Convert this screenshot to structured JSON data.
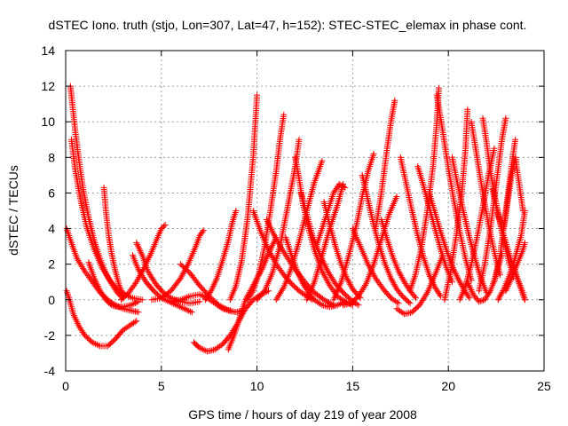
{
  "chart_data": {
    "type": "scatter",
    "title": "dSTEC Iono. truth (stjo, Lon=307, Lat=47, h=152): STEC-STEC_elemax in phase cont.",
    "xlabel": "GPS time / hours of day 219 of year 2008",
    "ylabel": "dSTEC  / TECUs",
    "xlim": [
      0,
      25
    ],
    "ylim": [
      -4,
      14
    ],
    "xticks": [
      0,
      5,
      10,
      15,
      20,
      25
    ],
    "yticks": [
      -4,
      -2,
      0,
      2,
      4,
      6,
      8,
      10,
      12,
      14
    ],
    "grid": true,
    "marker": "+",
    "color": "#ff0000",
    "series": [
      {
        "x": [
          0.05,
          0.2,
          0.4,
          0.7,
          1.0,
          1.4,
          1.8,
          2.2,
          2.6,
          3.0,
          3.4,
          3.7
        ],
        "values": [
          0.5,
          0.0,
          -0.8,
          -1.5,
          -2.0,
          -2.4,
          -2.6,
          -2.6,
          -2.2,
          -1.7,
          -1.4,
          -1.2
        ]
      },
      {
        "x": [
          0.05,
          0.3,
          0.6,
          1.0,
          1.4,
          1.8,
          2.2,
          2.6,
          3.0,
          3.4,
          3.8
        ],
        "values": [
          4.0,
          3.2,
          2.3,
          1.6,
          1.0,
          0.4,
          0.0,
          -0.3,
          -0.5,
          -0.6,
          -0.7
        ]
      },
      {
        "x": [
          0.25,
          0.35,
          0.5,
          0.7,
          0.9,
          1.2,
          1.5,
          1.8,
          2.1,
          2.4,
          2.7,
          3.0
        ],
        "values": [
          12.0,
          11.0,
          9.5,
          7.8,
          6.3,
          4.6,
          3.3,
          2.3,
          1.5,
          0.9,
          0.4,
          0.1
        ]
      },
      {
        "x": [
          0.3,
          0.5,
          0.8,
          1.1,
          1.5,
          1.9,
          2.3,
          2.7,
          3.1,
          3.5,
          4.0
        ],
        "values": [
          9.0,
          7.3,
          5.5,
          4.1,
          2.8,
          1.8,
          1.1,
          0.6,
          0.3,
          0.1,
          0.0
        ]
      },
      {
        "x": [
          1.2,
          1.5,
          1.8,
          2.1,
          2.4,
          2.7,
          3.0,
          3.4,
          3.8
        ],
        "values": [
          2.1,
          1.2,
          0.5,
          0.0,
          -0.3,
          -0.4,
          -0.4,
          -0.3,
          -0.1
        ]
      },
      {
        "x": [
          2.0,
          2.1,
          2.25,
          2.4,
          2.6,
          2.8,
          3.0
        ],
        "values": [
          6.3,
          5.0,
          3.6,
          2.6,
          1.6,
          0.8,
          0.3
        ]
      },
      {
        "x": [
          3.5,
          3.8,
          4.2,
          4.6,
          5.0,
          5.4,
          5.8,
          6.2,
          6.6
        ],
        "values": [
          2.5,
          1.7,
          1.0,
          0.5,
          0.1,
          -0.1,
          -0.3,
          -0.5,
          -0.7
        ]
      },
      {
        "x": [
          3.7,
          4.0,
          4.3,
          4.7,
          5.1,
          5.5,
          6.0,
          6.5,
          7.0
        ],
        "values": [
          3.2,
          2.5,
          1.6,
          0.9,
          0.4,
          0.1,
          -0.1,
          -0.2,
          -0.1
        ]
      },
      {
        "x": [
          2.9,
          3.3,
          3.7,
          4.1,
          4.5,
          4.8,
          5.0,
          5.2
        ],
        "values": [
          0.0,
          0.4,
          1.0,
          1.8,
          2.7,
          3.5,
          4.0,
          4.2
        ]
      },
      {
        "x": [
          4.5,
          5.0,
          5.5,
          6.0,
          6.4,
          6.8,
          7.0,
          7.2
        ],
        "values": [
          0.0,
          0.1,
          0.5,
          1.2,
          2.0,
          3.0,
          3.6,
          3.9
        ]
      },
      {
        "x": [
          5.5,
          6.0,
          6.5,
          7.0,
          7.4,
          7.8,
          8.2,
          8.6
        ],
        "values": [
          -0.1,
          0.0,
          0.2,
          0.3,
          0.1,
          -0.2,
          -0.5,
          -0.6
        ]
      },
      {
        "x": [
          6.0,
          6.5,
          7.0,
          7.5,
          8.0,
          8.5,
          8.9,
          9.3
        ],
        "values": [
          2.0,
          1.5,
          0.8,
          0.2,
          -0.3,
          -0.6,
          -0.7,
          -0.6
        ]
      },
      {
        "x": [
          6.7,
          7.0,
          7.4,
          7.8,
          8.2,
          8.6,
          9.0,
          9.4,
          9.8,
          10.2,
          10.6
        ],
        "values": [
          -2.4,
          -2.7,
          -2.9,
          -2.8,
          -2.5,
          -2.0,
          -1.3,
          -0.5,
          0.0,
          0.3,
          0.5
        ]
      },
      {
        "x": [
          8.5,
          8.8,
          9.1,
          9.4,
          9.7,
          10.0,
          10.3,
          10.6,
          11.0
        ],
        "values": [
          -2.8,
          -2.0,
          -1.0,
          0.0,
          0.6,
          1.2,
          1.8,
          2.6,
          3.5
        ]
      },
      {
        "x": [
          7.3,
          7.6,
          7.9,
          8.2,
          8.5,
          8.7,
          8.9
        ],
        "values": [
          0.0,
          0.5,
          1.2,
          2.2,
          3.3,
          4.3,
          5.0
        ]
      },
      {
        "x": [
          8.6,
          8.9,
          9.2,
          9.5,
          9.8,
          10.0
        ],
        "values": [
          0.0,
          0.8,
          2.2,
          4.5,
          8.0,
          11.5
        ]
      },
      {
        "x": [
          9.5,
          9.8,
          10.1,
          10.4,
          10.7,
          11.0,
          11.2,
          11.4
        ],
        "values": [
          0.0,
          0.5,
          1.5,
          3.0,
          5.0,
          7.2,
          9.0,
          10.4
        ]
      },
      {
        "x": [
          10.0,
          10.4,
          10.8,
          11.2,
          11.6,
          12.0,
          12.2
        ],
        "values": [
          0.0,
          0.5,
          1.5,
          3.0,
          5.2,
          7.5,
          9.0
        ]
      },
      {
        "x": [
          9.8,
          10.2,
          10.6,
          11.0,
          11.4,
          11.8,
          12.2,
          12.6,
          12.9
        ],
        "values": [
          5.0,
          3.8,
          2.8,
          2.0,
          1.4,
          0.9,
          0.5,
          0.2,
          0.0
        ]
      },
      {
        "x": [
          11.0,
          11.4,
          11.8,
          12.2,
          12.6,
          13.0,
          13.4
        ],
        "values": [
          0.0,
          0.7,
          1.8,
          3.3,
          5.0,
          6.6,
          7.8
        ]
      },
      {
        "x": [
          10.5,
          11.0,
          11.5,
          12.0,
          12.5,
          13.0,
          13.5,
          14.0
        ],
        "values": [
          4.5,
          3.4,
          2.5,
          1.7,
          1.0,
          0.4,
          0.0,
          -0.3
        ]
      },
      {
        "x": [
          11.5,
          11.8,
          12.1,
          12.4,
          12.7,
          13.0,
          13.4,
          13.8,
          14.2,
          14.6
        ],
        "values": [
          3.5,
          2.5,
          1.6,
          0.9,
          0.4,
          0.0,
          -0.3,
          -0.4,
          -0.3,
          -0.1
        ]
      },
      {
        "x": [
          12.0,
          12.2,
          12.4,
          12.7,
          13.0,
          13.4,
          13.8,
          14.2,
          14.6,
          15.0
        ],
        "values": [
          8.0,
          6.8,
          5.4,
          4.0,
          2.8,
          1.6,
          0.8,
          0.2,
          -0.1,
          -0.3
        ]
      },
      {
        "x": [
          12.3,
          12.6,
          12.9,
          13.3,
          13.7,
          14.1,
          14.5,
          14.9,
          15.3
        ],
        "values": [
          6.0,
          4.8,
          3.6,
          2.5,
          1.6,
          0.9,
          0.4,
          0.0,
          -0.3
        ]
      },
      {
        "x": [
          12.6,
          13.0,
          13.4,
          13.8,
          14.2,
          14.5
        ],
        "values": [
          0.0,
          1.0,
          2.5,
          4.0,
          5.3,
          6.5
        ]
      },
      {
        "x": [
          13.1,
          13.4,
          13.7,
          14.0,
          14.3,
          14.6
        ],
        "values": [
          3.0,
          4.0,
          5.0,
          6.0,
          6.5,
          6.3
        ]
      },
      {
        "x": [
          13.5,
          13.8,
          14.1,
          14.4,
          14.7,
          15.0,
          15.4
        ],
        "values": [
          5.5,
          4.2,
          3.0,
          2.0,
          1.2,
          0.6,
          0.1
        ]
      },
      {
        "x": [
          14.0,
          14.4,
          14.8,
          15.2,
          15.5,
          15.8,
          16.1
        ],
        "values": [
          0.0,
          1.0,
          2.5,
          4.2,
          5.8,
          7.2,
          8.2
        ]
      },
      {
        "x": [
          14.5,
          14.9,
          15.3,
          15.7,
          16.1,
          16.5,
          16.9,
          17.3
        ],
        "values": [
          -0.3,
          -0.2,
          0.2,
          0.9,
          2.0,
          3.4,
          4.8,
          5.8
        ]
      },
      {
        "x": [
          15.0,
          15.4,
          15.8,
          16.2,
          16.6,
          17.0,
          17.4
        ],
        "values": [
          4.0,
          3.0,
          2.0,
          1.2,
          0.6,
          0.1,
          -0.2
        ]
      },
      {
        "x": [
          15.5,
          15.8,
          16.1,
          16.4,
          16.7,
          17.0,
          17.3,
          17.6,
          18.0
        ],
        "values": [
          7.0,
          5.6,
          4.2,
          3.0,
          2.0,
          1.2,
          0.6,
          0.2,
          -0.2
        ]
      },
      {
        "x": [
          16.2,
          16.5,
          16.8,
          17.0,
          17.2
        ],
        "values": [
          4.0,
          6.0,
          8.5,
          10.0,
          11.2
        ]
      },
      {
        "x": [
          16.5,
          16.8,
          17.1,
          17.4,
          17.7,
          18.0,
          18.3
        ],
        "values": [
          4.5,
          3.4,
          2.4,
          1.6,
          1.0,
          0.5,
          0.1
        ]
      },
      {
        "x": [
          17.3,
          17.7,
          18.1,
          18.5,
          18.9,
          19.3,
          19.7
        ],
        "values": [
          -0.5,
          -0.8,
          -0.7,
          -0.3,
          0.4,
          1.4,
          2.5
        ]
      },
      {
        "x": [
          17.5,
          17.8,
          18.1,
          18.4,
          18.7,
          19.0,
          19.3,
          19.6
        ],
        "values": [
          8.0,
          6.5,
          5.0,
          3.6,
          2.4,
          1.4,
          0.7,
          0.2
        ]
      },
      {
        "x": [
          18.0,
          18.3,
          18.6,
          18.9,
          19.2,
          19.4,
          19.5
        ],
        "values": [
          0.5,
          1.5,
          3.0,
          5.0,
          7.5,
          10.0,
          11.9
        ]
      },
      {
        "x": [
          18.4,
          18.7,
          19.0,
          19.3,
          19.6,
          19.9,
          20.2
        ],
        "values": [
          7.5,
          6.4,
          5.2,
          4.0,
          2.8,
          1.8,
          1.0
        ]
      },
      {
        "x": [
          19.0,
          19.3,
          19.6,
          19.9,
          20.2,
          20.5,
          20.8,
          21.1
        ],
        "values": [
          6.0,
          4.9,
          3.8,
          2.8,
          1.9,
          1.2,
          0.6,
          0.1
        ]
      },
      {
        "x": [
          19.4,
          19.7,
          20.0,
          20.3,
          20.6,
          20.9,
          21.2
        ],
        "values": [
          11.5,
          9.5,
          7.4,
          5.5,
          3.8,
          2.3,
          1.1
        ]
      },
      {
        "x": [
          19.8,
          20.1,
          20.4,
          20.7,
          20.9,
          21.0
        ],
        "values": [
          0.0,
          1.5,
          3.5,
          6.0,
          8.5,
          10.7
        ]
      },
      {
        "x": [
          20.2,
          20.5,
          20.8,
          21.1,
          21.4,
          21.7,
          22.0
        ],
        "values": [
          8.0,
          6.4,
          4.9,
          3.5,
          2.3,
          1.2,
          0.4
        ]
      },
      {
        "x": [
          20.6,
          20.9,
          21.2,
          21.5,
          21.8,
          22.1,
          22.4
        ],
        "values": [
          0.0,
          0.8,
          2.0,
          3.5,
          5.2,
          7.0,
          8.5
        ]
      },
      {
        "x": [
          21.2,
          21.5,
          21.8,
          22.1,
          22.4,
          22.7
        ],
        "values": [
          10.0,
          8.0,
          6.0,
          4.2,
          2.7,
          1.4
        ]
      },
      {
        "x": [
          21.0,
          21.3,
          21.6,
          21.9,
          22.2,
          22.5,
          22.8
        ],
        "values": [
          1.0,
          0.3,
          -0.1,
          0.0,
          0.5,
          1.4,
          2.6
        ]
      },
      {
        "x": [
          21.8,
          22.0,
          22.2,
          22.5,
          22.8,
          23.1,
          23.4
        ],
        "values": [
          10.2,
          8.8,
          7.2,
          5.4,
          3.8,
          2.4,
          1.3
        ]
      },
      {
        "x": [
          21.6,
          21.9,
          22.2,
          22.5,
          22.8,
          23.0
        ],
        "values": [
          0.5,
          2.0,
          4.0,
          6.5,
          9.0,
          10.2
        ]
      },
      {
        "x": [
          22.3,
          22.6,
          22.9,
          23.2,
          23.5,
          23.8,
          24.0
        ],
        "values": [
          6.2,
          4.8,
          3.6,
          2.5,
          1.5,
          0.7,
          0.0
        ]
      },
      {
        "x": [
          22.4,
          22.7,
          23.0,
          23.3,
          23.5
        ],
        "values": [
          1.0,
          2.5,
          5.0,
          7.5,
          9.0
        ]
      },
      {
        "x": [
          22.9,
          23.1,
          23.3,
          23.5,
          23.7,
          23.9
        ],
        "values": [
          4.0,
          5.5,
          7.0,
          8.0,
          6.5,
          5.0
        ]
      },
      {
        "x": [
          22.6,
          22.9,
          23.2,
          23.5,
          23.8,
          24.0
        ],
        "values": [
          0.0,
          0.6,
          1.4,
          2.4,
          3.6,
          5.0
        ]
      },
      {
        "x": [
          23.0,
          23.3,
          23.6,
          23.9,
          24.0
        ],
        "values": [
          0.5,
          1.2,
          2.0,
          2.8,
          3.2
        ]
      },
      {
        "x": [
          23.4,
          23.6,
          23.8,
          24.0
        ],
        "values": [
          2.0,
          1.2,
          0.6,
          0.0
        ]
      }
    ]
  }
}
